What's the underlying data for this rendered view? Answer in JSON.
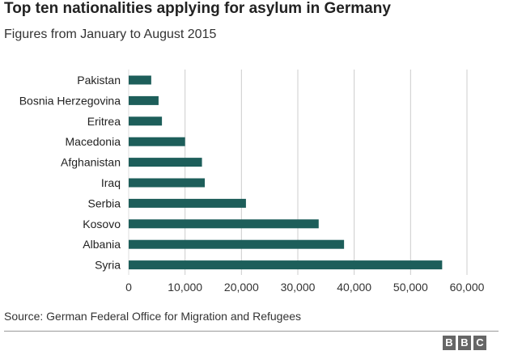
{
  "chart_data": {
    "type": "bar",
    "orientation": "horizontal",
    "title": "Top ten nationalities applying for asylum in Germany",
    "subtitle": "Figures from January to August 2015",
    "categories": [
      "Pakistan",
      "Bosnia Herzegovina",
      "Eritrea",
      "Macedonia",
      "Afghanistan",
      "Iraq",
      "Serbia",
      "Kosovo",
      "Albania",
      "Syria"
    ],
    "values": [
      4000,
      5300,
      5900,
      10000,
      13000,
      13500,
      20800,
      33700,
      38200,
      55600
    ],
    "xlim": [
      0,
      60000
    ],
    "xticks": [
      "0",
      "10,000",
      "20,000",
      "30,000",
      "40,000",
      "50,000",
      "60,000"
    ],
    "xtick_values": [
      0,
      10000,
      20000,
      30000,
      40000,
      50000,
      60000
    ],
    "grid": "vertical",
    "bar_color": "#1d5e5a",
    "xlabel": "",
    "ylabel": ""
  },
  "source": "Source: German Federal Office for Migration and Refugees",
  "logo": [
    "B",
    "B",
    "C"
  ],
  "colors": {
    "bar": "#1d5e5a",
    "grid": "#cccccc",
    "logo_box": "#666666"
  }
}
